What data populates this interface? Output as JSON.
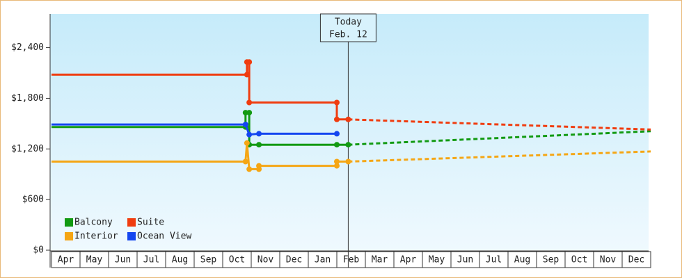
{
  "chart_data": {
    "type": "step-line",
    "categories": [
      "Apr",
      "May",
      "Jun",
      "Jul",
      "Aug",
      "Sep",
      "Oct",
      "Nov",
      "Dec",
      "Jan",
      "Feb",
      "Mar",
      "Apr",
      "May",
      "Jun",
      "Jul",
      "Aug",
      "Sep",
      "Oct",
      "Nov",
      "Dec"
    ],
    "xlim": [
      0,
      21
    ],
    "ylim": [
      0,
      2800
    ],
    "yticks": [
      {
        "value": 0,
        "label": "$0"
      },
      {
        "value": 600,
        "label": "$600"
      },
      {
        "value": 1200,
        "label": "$1,200"
      },
      {
        "value": 1800,
        "label": "$1,800"
      },
      {
        "value": 2400,
        "label": "$2,400"
      }
    ],
    "annotation": {
      "text": [
        "Today",
        "Feb. 12"
      ],
      "x": 10.4
    },
    "series": [
      {
        "name": "Balcony",
        "color": "#129a12",
        "x": [
          0,
          6.8,
          6.8,
          6.93,
          6.93,
          7.27,
          10,
          10.4
        ],
        "values": [
          1460,
          1460,
          1630,
          1630,
          1250,
          1250,
          1250,
          1250
        ],
        "forecast_x": [
          10.4,
          21
        ],
        "forecast_values": [
          1250,
          1410
        ]
      },
      {
        "name": "Suite",
        "color": "#f03c0f",
        "x": [
          0,
          6.85,
          6.85,
          6.93,
          6.93,
          10,
          10,
          10.4
        ],
        "values": [
          2080,
          2080,
          2230,
          2230,
          1750,
          1750,
          1550,
          1550
        ],
        "forecast_x": [
          10.4,
          21
        ],
        "forecast_values": [
          1550,
          1430
        ]
      },
      {
        "name": "Interior",
        "color": "#f5a614",
        "x": [
          0,
          6.8,
          6.85,
          6.93,
          7.27,
          7.27,
          10,
          10,
          10.4
        ],
        "values": [
          1050,
          1050,
          1270,
          960,
          960,
          1000,
          1000,
          1050,
          1050
        ],
        "forecast_x": [
          10.4,
          21
        ],
        "forecast_values": [
          1050,
          1170
        ]
      },
      {
        "name": "Ocean View",
        "color": "#1446f0",
        "x": [
          0,
          6.8,
          6.93,
          7.27,
          10
        ],
        "values": [
          1490,
          1490,
          1370,
          1380,
          1380
        ]
      }
    ]
  }
}
